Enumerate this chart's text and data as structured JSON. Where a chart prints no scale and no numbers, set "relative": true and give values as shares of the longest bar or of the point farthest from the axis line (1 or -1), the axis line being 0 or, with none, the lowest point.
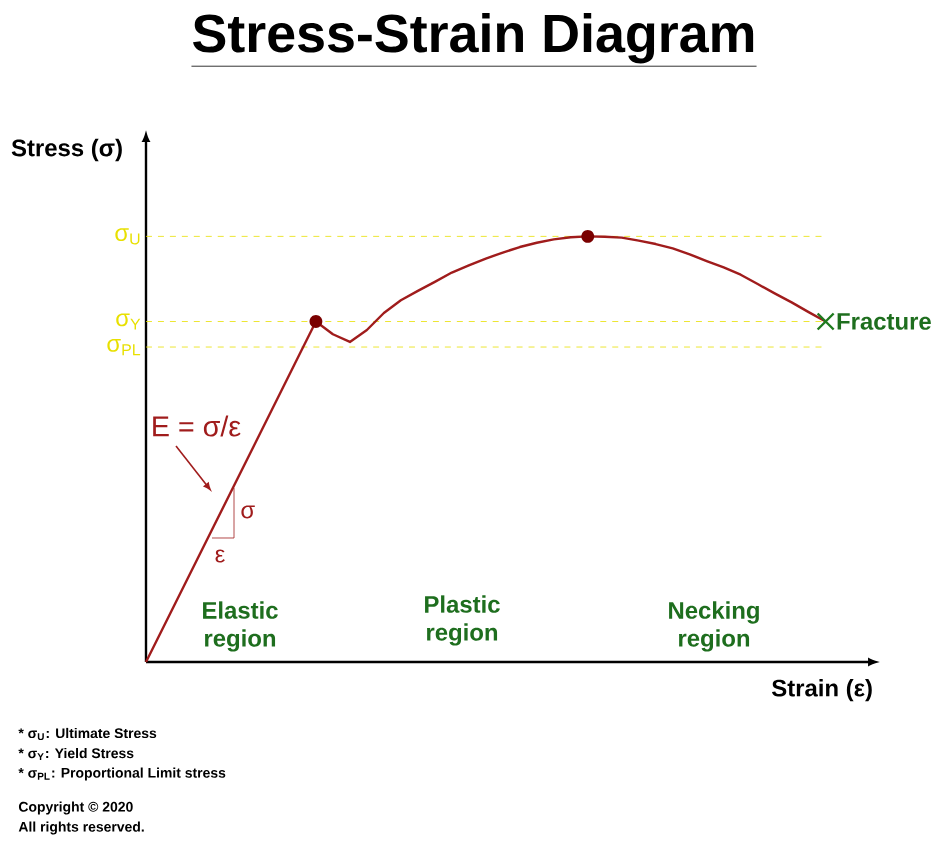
{
  "chart_data": {
    "type": "line",
    "title": "Stress-Strain Diagram",
    "xlabel": "Strain (ε)",
    "ylabel": "Stress (σ)",
    "relative": true,
    "categories": [
      null,
      null,
      null,
      null,
      null,
      null,
      null,
      null,
      null,
      null,
      null,
      null,
      null,
      null,
      null,
      null,
      null,
      null,
      null,
      null,
      null,
      null,
      null,
      null,
      null,
      null,
      null,
      null,
      null,
      null,
      null,
      null,
      null,
      null,
      null,
      null,
      null,
      null,
      null,
      null,
      null
    ],
    "series": [
      {
        "color": "#a01c1c",
        "marker": "none",
        "line_style": "solid",
        "values": [
          0,
          0.08,
          0.16,
          0.24,
          0.32,
          0.4,
          0.48,
          0.56,
          0.64,
          0.72,
          0.8,
          0.77,
          0.752,
          0.78,
          0.82,
          0.85,
          0.872,
          0.893,
          0.915,
          0.932,
          0.948,
          0.962,
          0.975,
          0.985,
          0.993,
          0.998,
          1.0,
          0.999,
          0.997,
          0.99,
          0.982,
          0.972,
          0.958,
          0.942,
          0.927,
          0.91,
          0.888,
          0.866,
          0.845,
          0.822,
          0.8
        ]
      }
    ],
    "ref_lines": [
      {
        "axis": "y",
        "value": 1.0,
        "label": "σ$_{U}$",
        "color": "#e8e000",
        "line_style": "dashed"
      },
      {
        "axis": "y",
        "value": 0.8,
        "label": "σ$_{Y}$",
        "color": "#e8e000",
        "line_style": "dashed"
      },
      {
        "axis": "y",
        "value": 0.74,
        "label": "σ$_{PL}$",
        "color": "#e8e000",
        "line_style": "dashed"
      }
    ],
    "annotations": [
      "E = σ/ε",
      "σ",
      "ε",
      "Elastic region",
      "Plastic region",
      "Necking region",
      "Fracture",
      "* σ$_{U}$: Ultimate Stress",
      "* σ$_{Y}$: Yield Stress",
      "* σ$_{PL}$: Proportional Limit stress",
      "Copyright © 2020",
      "All rights reserved."
    ]
  }
}
